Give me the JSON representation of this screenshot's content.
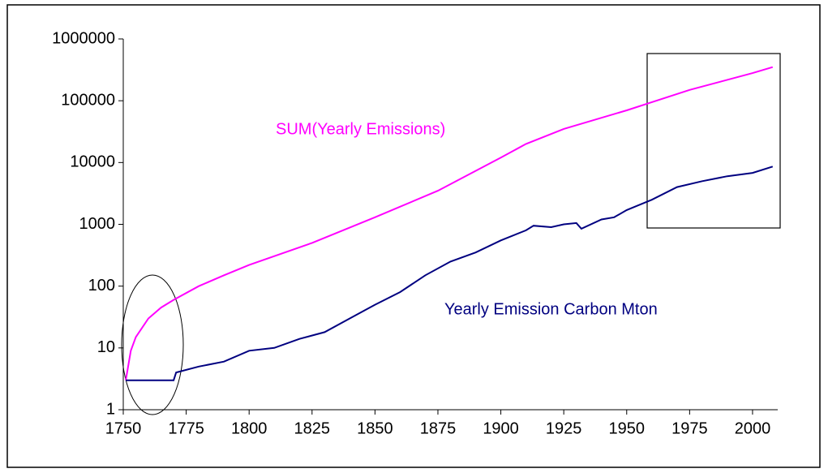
{
  "chart_data": {
    "type": "line",
    "log_scale": true,
    "grid": false,
    "xlim": [
      1750,
      2010
    ],
    "xticks": [
      1750,
      1775,
      1800,
      1825,
      1850,
      1875,
      1900,
      1925,
      1950,
      1975,
      2000
    ],
    "ylim": [
      1,
      1000000
    ],
    "yticks": [
      1,
      10,
      100,
      1000,
      10000,
      100000,
      1000000
    ],
    "series": [
      {
        "name": "SUM(Yearly Emissions)",
        "color": "#ff00ff",
        "x": [
          1751,
          1753,
          1755,
          1760,
          1765,
          1770,
          1780,
          1790,
          1800,
          1825,
          1850,
          1875,
          1900,
          1910,
          1925,
          1950,
          1975,
          2000,
          2008
        ],
        "values": [
          3,
          9,
          15,
          30,
          45,
          60,
          100,
          150,
          220,
          500,
          1300,
          3500,
          12000,
          20000,
          35000,
          70000,
          150000,
          280000,
          350000
        ]
      },
      {
        "name": "Yearly Emission Carbon Mton",
        "color": "#000080",
        "x": [
          1751,
          1760,
          1770,
          1771,
          1780,
          1790,
          1800,
          1810,
          1820,
          1830,
          1840,
          1850,
          1860,
          1870,
          1880,
          1890,
          1900,
          1910,
          1913,
          1920,
          1925,
          1930,
          1932,
          1940,
          1945,
          1950,
          1960,
          1970,
          1980,
          1990,
          2000,
          2008
        ],
        "values": [
          3,
          3,
          3,
          4,
          5,
          6,
          9,
          10,
          14,
          18,
          30,
          50,
          80,
          150,
          250,
          350,
          550,
          800,
          950,
          900,
          1000,
          1050,
          850,
          1200,
          1300,
          1700,
          2500,
          4000,
          5000,
          6000,
          6800,
          8600
        ]
      }
    ]
  }
}
